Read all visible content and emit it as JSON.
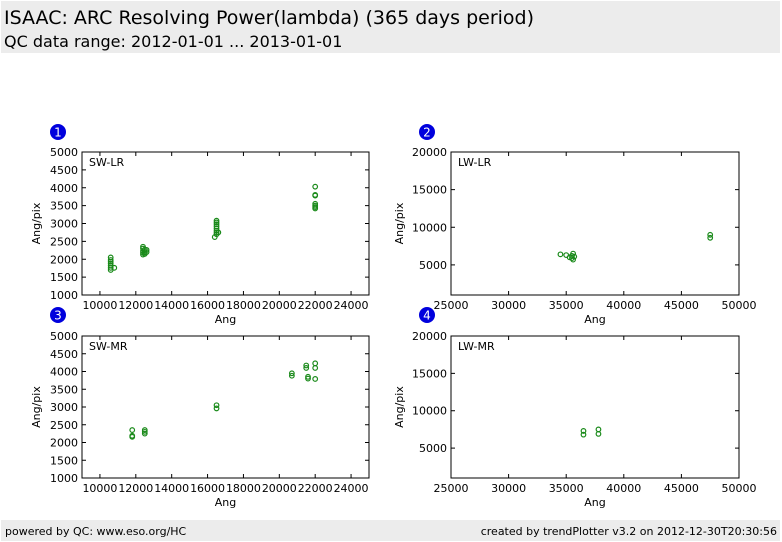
{
  "header": {
    "title": "ISAAC: ARC Resolving Power(lambda) (365 days period)",
    "subtitle": "QC data range: 2012-01-01 ... 2013-01-01"
  },
  "footer": {
    "left": "powered by QC: www.eso.org/HC",
    "right": "created by trendPlotter v3.2 on 2012-12-30T20:30:56"
  },
  "colors": {
    "marker": "#1a8a1a",
    "badge": "#0000dd",
    "badge_text": "#ffffff",
    "band": "#ececec"
  },
  "chart_data": [
    {
      "type": "scatter",
      "badge": "1",
      "label": "SW-LR",
      "xlabel": "Ang",
      "ylabel": "Ang/pix",
      "xlim": [
        9000,
        25000
      ],
      "ylim": [
        1000,
        5000
      ],
      "xticks": [
        10000,
        12000,
        14000,
        16000,
        18000,
        20000,
        22000,
        24000
      ],
      "yticks": [
        1000,
        1500,
        2000,
        2500,
        3000,
        3500,
        4000,
        4500,
        5000
      ],
      "points": [
        [
          10600,
          2050
        ],
        [
          10600,
          1980
        ],
        [
          10600,
          1930
        ],
        [
          10600,
          1880
        ],
        [
          10600,
          1820
        ],
        [
          10600,
          1760
        ],
        [
          10600,
          1700
        ],
        [
          10800,
          1760
        ],
        [
          12400,
          2350
        ],
        [
          12400,
          2300
        ],
        [
          12500,
          2270
        ],
        [
          12400,
          2230
        ],
        [
          12500,
          2200
        ],
        [
          12400,
          2180
        ],
        [
          12500,
          2150
        ],
        [
          12400,
          2130
        ],
        [
          12600,
          2200
        ],
        [
          12600,
          2260
        ],
        [
          16500,
          3080
        ],
        [
          16500,
          3030
        ],
        [
          16500,
          2980
        ],
        [
          16500,
          2920
        ],
        [
          16500,
          2860
        ],
        [
          16500,
          2800
        ],
        [
          16500,
          2750
        ],
        [
          16500,
          2700
        ],
        [
          16400,
          2620
        ],
        [
          16600,
          2750
        ],
        [
          22000,
          4030
        ],
        [
          22000,
          3800
        ],
        [
          22000,
          3780
        ],
        [
          22000,
          3550
        ],
        [
          22000,
          3500
        ],
        [
          22000,
          3460
        ],
        [
          22000,
          3420
        ]
      ]
    },
    {
      "type": "scatter",
      "badge": "2",
      "label": "LW-LR",
      "xlabel": "Ang",
      "ylabel": "Ang/pix",
      "xlim": [
        25000,
        50000
      ],
      "ylim": [
        1000,
        20000
      ],
      "xticks": [
        25000,
        30000,
        35000,
        40000,
        45000,
        50000
      ],
      "yticks": [
        5000,
        10000,
        15000,
        20000
      ],
      "points": [
        [
          34500,
          6400
        ],
        [
          35000,
          6300
        ],
        [
          35300,
          6000
        ],
        [
          35500,
          6200
        ],
        [
          35600,
          6500
        ],
        [
          35500,
          5900
        ],
        [
          35600,
          5700
        ],
        [
          35700,
          6100
        ],
        [
          47500,
          9000
        ],
        [
          47500,
          8600
        ]
      ]
    },
    {
      "type": "scatter",
      "badge": "3",
      "label": "SW-MR",
      "xlabel": "Ang",
      "ylabel": "Ang/pix",
      "xlim": [
        9000,
        25000
      ],
      "ylim": [
        1000,
        5000
      ],
      "xticks": [
        10000,
        12000,
        14000,
        16000,
        18000,
        20000,
        22000,
        24000
      ],
      "yticks": [
        1000,
        1500,
        2000,
        2500,
        3000,
        3500,
        4000,
        4500,
        5000
      ],
      "points": [
        [
          11800,
          2350
        ],
        [
          11800,
          2190
        ],
        [
          11800,
          2160
        ],
        [
          12500,
          2350
        ],
        [
          12500,
          2300
        ],
        [
          12500,
          2250
        ],
        [
          16500,
          3050
        ],
        [
          16500,
          2960
        ],
        [
          20700,
          3950
        ],
        [
          20700,
          3880
        ],
        [
          21500,
          4170
        ],
        [
          21500,
          4100
        ],
        [
          21600,
          3850
        ],
        [
          21600,
          3800
        ],
        [
          22000,
          4230
        ],
        [
          22000,
          4100
        ],
        [
          22000,
          3790
        ]
      ]
    },
    {
      "type": "scatter",
      "badge": "4",
      "label": "LW-MR",
      "xlabel": "Ang",
      "ylabel": "Ang/pix",
      "xlim": [
        25000,
        50000
      ],
      "ylim": [
        1000,
        20000
      ],
      "xticks": [
        25000,
        30000,
        35000,
        40000,
        45000,
        50000
      ],
      "yticks": [
        5000,
        10000,
        15000,
        20000
      ],
      "points": [
        [
          36500,
          7300
        ],
        [
          36500,
          6800
        ],
        [
          37800,
          7500
        ],
        [
          37800,
          6900
        ]
      ]
    }
  ]
}
